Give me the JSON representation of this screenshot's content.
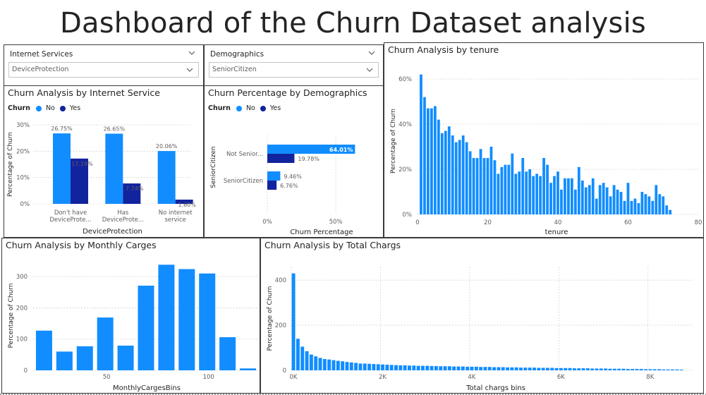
{
  "dashboard": {
    "title": "Dashboard of the Churn Dataset analysis"
  },
  "slicers": [
    {
      "label": "Internet Services",
      "selected": "DeviceProtection"
    },
    {
      "label": "Demographics",
      "selected": "SeniorCitizen"
    }
  ],
  "colors": {
    "no": "#118dff",
    "yes": "#12239e",
    "grid": "#c8c6c4",
    "text": "#605e5c",
    "border": "#3b3a39"
  },
  "legend": {
    "title": "Churn",
    "no": "No",
    "yes": "Yes"
  },
  "chart_data": [
    {
      "id": "internet",
      "type": "bar",
      "title": "Churn Analysis by Internet Service",
      "xlabel": "DeviceProtection",
      "ylabel": "Percentage of Churn",
      "ylim": [
        0,
        30
      ],
      "yticks": [
        "0%",
        "10%",
        "20%",
        "30%"
      ],
      "categories": [
        [
          "Don't have",
          "DeviceProte..."
        ],
        [
          "Has",
          "DeviceProte..."
        ],
        [
          "No internet",
          "service"
        ]
      ],
      "series": [
        {
          "name": "No",
          "values": [
            26.75,
            26.65,
            20.06
          ],
          "labels": [
            "26.75%",
            "26.65%",
            "20.06%"
          ]
        },
        {
          "name": "Yes",
          "values": [
            17.19,
            7.74,
            1.6
          ],
          "labels": [
            "17.19%",
            "7.74%",
            "1.60%"
          ]
        }
      ]
    },
    {
      "id": "demographics",
      "type": "bar",
      "orientation": "horizontal",
      "title": "Churn Percentage by Demographics",
      "xlabel": "Churn Percentage",
      "ylabel": "SeniorCitizen",
      "xlim": [
        0,
        70
      ],
      "xticks": [
        "0%",
        "50%"
      ],
      "categories": [
        "Not Senior...",
        "SeniorCitizen"
      ],
      "series": [
        {
          "name": "No",
          "values": [
            64.01,
            9.46
          ],
          "labels": [
            "64.01%",
            "9.46%"
          ]
        },
        {
          "name": "Yes",
          "values": [
            19.78,
            6.76
          ],
          "labels": [
            "19.78%",
            "6.76%"
          ]
        }
      ]
    },
    {
      "id": "tenure",
      "type": "bar",
      "title": "Churn Analysis by tenure",
      "xlabel": "tenure",
      "ylabel": "Percentage of Churn",
      "xlim": [
        0,
        80
      ],
      "ylim": [
        0,
        65
      ],
      "xticks": [
        "0",
        "20",
        "40",
        "60",
        "80"
      ],
      "yticks": [
        "0%",
        "20%",
        "40%",
        "60%"
      ],
      "x": [
        1,
        2,
        3,
        4,
        5,
        6,
        7,
        8,
        9,
        10,
        11,
        12,
        13,
        14,
        15,
        16,
        17,
        18,
        19,
        20,
        21,
        22,
        23,
        24,
        25,
        26,
        27,
        28,
        29,
        30,
        31,
        32,
        33,
        34,
        35,
        36,
        37,
        38,
        39,
        40,
        41,
        42,
        43,
        44,
        45,
        46,
        47,
        48,
        49,
        50,
        51,
        52,
        53,
        54,
        55,
        56,
        57,
        58,
        59,
        60,
        61,
        62,
        63,
        64,
        65,
        66,
        67,
        68,
        69,
        70,
        71,
        72
      ],
      "values": [
        62,
        52,
        47,
        47,
        48,
        42,
        36,
        37,
        39,
        35,
        32,
        33,
        35,
        32,
        28,
        25,
        25,
        29,
        25,
        25,
        30,
        24,
        18,
        21,
        22,
        22,
        27,
        18,
        19,
        25,
        19,
        20,
        17,
        18,
        17,
        25,
        22,
        14,
        17,
        19,
        11,
        16,
        16,
        16,
        11,
        21,
        15,
        12,
        13,
        16,
        7,
        13,
        14,
        12,
        8,
        13,
        11,
        10,
        6,
        14,
        6,
        7,
        5,
        10,
        9,
        8,
        6,
        13,
        9,
        8,
        4,
        2
      ]
    },
    {
      "id": "monthly",
      "type": "bar",
      "title": "Churn Analysis by Monthly Carges",
      "xlabel": "MonthlyCargesBins",
      "ylabel": "Percentage of Churn",
      "ylim": [
        0,
        350
      ],
      "xticks": [
        "50",
        "100"
      ],
      "yticks": [
        "0",
        "100",
        "200",
        "300"
      ],
      "x": [
        20,
        30,
        40,
        50,
        60,
        70,
        80,
        90,
        100,
        110,
        120
      ],
      "values": [
        127,
        60,
        77,
        169,
        79,
        271,
        338,
        324,
        310,
        106,
        6
      ]
    },
    {
      "id": "total",
      "type": "bar",
      "title": "Churn Analysis by Total Chargs",
      "xlabel": "Total chargs bins",
      "ylabel": "Percentage of Churn",
      "xlim": [
        0,
        9000
      ],
      "ylim": [
        0,
        460
      ],
      "xticks": [
        "0K",
        "2K",
        "4K",
        "6K",
        "8K"
      ],
      "yticks": [
        "0",
        "200",
        "400"
      ],
      "bin_width": 100,
      "values": [
        430,
        140,
        105,
        85,
        70,
        62,
        55,
        50,
        48,
        45,
        42,
        40,
        37,
        35,
        33,
        30,
        30,
        29,
        28,
        27,
        26,
        25,
        24,
        23,
        22,
        22,
        21,
        21,
        20,
        20,
        20,
        19,
        19,
        18,
        18,
        18,
        17,
        17,
        17,
        16,
        16,
        16,
        15,
        15,
        15,
        14,
        14,
        14,
        13,
        13,
        13,
        12,
        12,
        12,
        12,
        11,
        11,
        11,
        11,
        10,
        10,
        10,
        10,
        9,
        9,
        9,
        9,
        8,
        8,
        8,
        8,
        7,
        7,
        7,
        7,
        6,
        6,
        6,
        6,
        5,
        5,
        5,
        5,
        4,
        4,
        4,
        4,
        3
      ]
    }
  ]
}
